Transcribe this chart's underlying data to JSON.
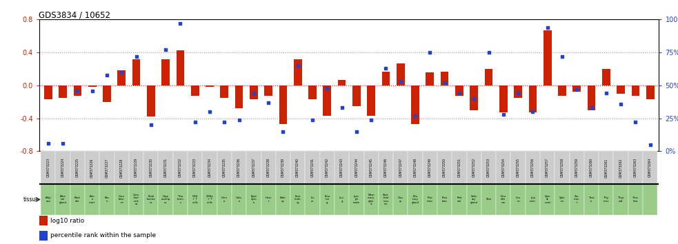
{
  "title": "GDS3834 / 10652",
  "gsm_labels": [
    "GSM373223",
    "GSM373224",
    "GSM373225",
    "GSM373226",
    "GSM373227",
    "GSM373228",
    "GSM373229",
    "GSM373230",
    "GSM373231",
    "GSM373232",
    "GSM373233",
    "GSM373234",
    "GSM373235",
    "GSM373236",
    "GSM373237",
    "GSM373238",
    "GSM373239",
    "GSM373240",
    "GSM373241",
    "GSM373242",
    "GSM373243",
    "GSM373244",
    "GSM373245",
    "GSM373246",
    "GSM373247",
    "GSM373248",
    "GSM373249",
    "GSM373250",
    "GSM373251",
    "GSM373252",
    "GSM373253",
    "GSM373254",
    "GSM373255",
    "GSM373256",
    "GSM373257",
    "GSM373258",
    "GSM373259",
    "GSM373260",
    "GSM373261",
    "GSM373262",
    "GSM373263",
    "GSM373264"
  ],
  "tissue_labels": [
    "Adip\nose",
    "Adre\nnal\ngland",
    "Blad\nder",
    "Bon\ne\nmarr",
    "Bra\nin",
    "Cere\nbelu\nm",
    "Cere\nbral\ncort\nex",
    "Fetal\nbraino\nca",
    "Hipp\nocamp\nus",
    "Tha\nlamu\ns",
    "CD4\n+ T\ncells",
    "CD8a\n+ T\ncells",
    "Cerv\nix",
    "Colo\nn",
    "Epid\ndym\nis",
    "Hear\nt",
    "Kidn\ney",
    "Feta\nlkidn\ney",
    "Liv\ner",
    "Feta\nlun\ng",
    "Lun\ng",
    "Lym\nph\nnode",
    "Mam\nmary\nglan\nd",
    "Sket\nletal\nmus\ncle",
    "Ova\nry",
    "Pitu\nitary\ngland",
    "Plac\nenta",
    "Pros\ntate",
    "Reti\nnal",
    "Saliv\nary\ngland",
    "Skin",
    "Duo\nden\num",
    "Ileu\nm",
    "Jeju\nnum",
    "Spin\nal\ncord",
    "Sple\nen",
    "Sto\nmac\nt",
    "Test\nis",
    "Thy\nmus",
    "Thyr\noid",
    "Trac\nhea"
  ],
  "log10_ratio": [
    -0.17,
    -0.15,
    -0.13,
    -0.02,
    -0.2,
    0.18,
    0.32,
    -0.38,
    0.32,
    0.43,
    -0.13,
    -0.02,
    -0.15,
    -0.28,
    -0.17,
    -0.13,
    -0.47,
    0.32,
    -0.17,
    -0.37,
    0.07,
    -0.25,
    -0.37,
    0.17,
    0.27,
    -0.47,
    0.16,
    0.17,
    -0.13,
    -0.3,
    0.2,
    -0.33,
    -0.15,
    -0.33,
    0.67,
    -0.13,
    -0.08,
    -0.3,
    0.2,
    -0.1,
    -0.13,
    -0.17
  ],
  "percentile": [
    6,
    6,
    46,
    46,
    58,
    60,
    72,
    20,
    77,
    97,
    22,
    30,
    22,
    24,
    44,
    37,
    15,
    65,
    24,
    48,
    33,
    15,
    24,
    63,
    53,
    27,
    75,
    52,
    44,
    40,
    75,
    28,
    44,
    30,
    94,
    72,
    47,
    33,
    44,
    36,
    22,
    5
  ],
  "bar_color": "#cc2200",
  "dot_color": "#2244cc",
  "ylim": [
    -0.8,
    0.8
  ],
  "yticks_left": [
    -0.8,
    -0.4,
    0.0,
    0.4,
    0.8
  ],
  "yticks_right": [
    0,
    25,
    50,
    75,
    100
  ],
  "y2lim": [
    0,
    100
  ],
  "dotted_lines": [
    -0.4,
    0.0,
    0.4
  ],
  "background_color": "#ffffff",
  "header_bg": "#cccccc",
  "tissue_bg": "#99cc88",
  "legend_red": "log10 ratio",
  "legend_blue": "percentile rank within the sample"
}
